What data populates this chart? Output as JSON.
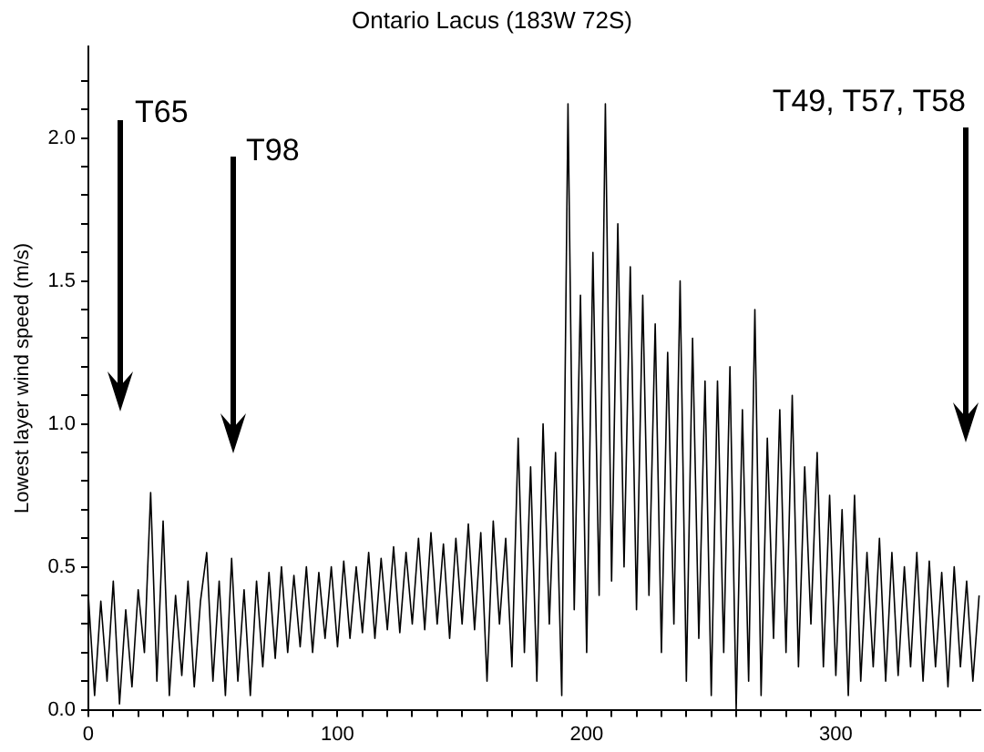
{
  "chart_data": {
    "type": "line",
    "title": "Ontario Lacus (183W 72S)",
    "ylabel": "Lowest layer wind speed (m/s)",
    "xlim": [
      0,
      358
    ],
    "ylim": [
      0,
      2.32
    ],
    "xticks": [
      0,
      {
        "value": 10,
        "label": null
      },
      {
        "value": 20,
        "label": null
      },
      {
        "value": 30,
        "label": null
      },
      {
        "value": 40,
        "label": null
      },
      {
        "value": 50,
        "label": null
      },
      {
        "value": 60,
        "label": null
      },
      {
        "value": 70,
        "label": null
      },
      {
        "value": 80,
        "label": null
      },
      {
        "value": 90,
        "label": null
      },
      100,
      {
        "value": 110,
        "label": null
      },
      {
        "value": 120,
        "label": null
      },
      {
        "value": 130,
        "label": null
      },
      {
        "value": 140,
        "label": null
      },
      {
        "value": 150,
        "label": null
      },
      {
        "value": 160,
        "label": null
      },
      {
        "value": 170,
        "label": null
      },
      {
        "value": 180,
        "label": null
      },
      {
        "value": 190,
        "label": null
      },
      200,
      {
        "value": 210,
        "label": null
      },
      {
        "value": 220,
        "label": null
      },
      {
        "value": 230,
        "label": null
      },
      {
        "value": 240,
        "label": null
      },
      {
        "value": 250,
        "label": null
      },
      {
        "value": 260,
        "label": null
      },
      {
        "value": 270,
        "label": null
      },
      {
        "value": 280,
        "label": null
      },
      {
        "value": 290,
        "label": null
      },
      300,
      {
        "value": 310,
        "label": null
      },
      {
        "value": 320,
        "label": null
      },
      {
        "value": 330,
        "label": null
      },
      {
        "value": 340,
        "label": null
      },
      {
        "value": 350,
        "label": null
      }
    ],
    "yticks": [
      {
        "value": 0,
        "label": "0.0"
      },
      {
        "value": 0.1,
        "label": null
      },
      {
        "value": 0.2,
        "label": null
      },
      {
        "value": 0.3,
        "label": null
      },
      {
        "value": 0.4,
        "label": null
      },
      0.5,
      {
        "value": 0.6,
        "label": null
      },
      {
        "value": 0.7,
        "label": null
      },
      {
        "value": 0.8,
        "label": null
      },
      {
        "value": 0.9,
        "label": null
      },
      {
        "value": 1,
        "label": "1.0"
      },
      {
        "value": 1.1,
        "label": null
      },
      {
        "value": 1.2,
        "label": null
      },
      {
        "value": 1.3,
        "label": null
      },
      {
        "value": 1.4,
        "label": null
      },
      1.5,
      {
        "value": 1.6,
        "label": null
      },
      {
        "value": 1.7,
        "label": null
      },
      {
        "value": 1.8,
        "label": null
      },
      {
        "value": 1.9,
        "label": null
      },
      {
        "value": 2,
        "label": "2.0"
      },
      {
        "value": 2.1,
        "label": null
      },
      {
        "value": 2.2,
        "label": null
      }
    ],
    "grid": false,
    "legend": false,
    "marker": "none",
    "line_style": "solid",
    "series": [
      {
        "color": "#000000",
        "x": [
          0,
          2.5,
          5,
          7.5,
          10,
          12.5,
          15,
          17.5,
          20,
          22.5,
          25,
          27.5,
          30,
          32.5,
          35,
          37.5,
          40,
          42.5,
          45,
          47.5,
          50,
          52.5,
          55,
          57.5,
          60,
          62.5,
          65,
          67.5,
          70,
          72.5,
          75,
          77.5,
          80,
          82.5,
          85,
          87.5,
          90,
          92.5,
          95,
          97.5,
          100,
          102.5,
          105,
          107.5,
          110,
          112.5,
          115,
          117.5,
          120,
          122.5,
          125,
          127.5,
          130,
          132.5,
          135,
          137.5,
          140,
          142.5,
          145,
          147.5,
          150,
          152.5,
          155,
          157.5,
          160,
          162.5,
          165,
          167.5,
          170,
          172.5,
          175,
          177.5,
          180,
          182.5,
          185,
          187.5,
          190,
          192.5,
          195,
          197.5,
          200,
          202.5,
          205,
          207.5,
          210,
          212.5,
          215,
          217.5,
          220,
          222.5,
          225,
          227.5,
          230,
          232.5,
          235,
          237.5,
          240,
          242.5,
          245,
          247.5,
          250,
          252.5,
          255,
          257.5,
          260,
          262.5,
          265,
          267.5,
          270,
          272.5,
          275,
          277.5,
          280,
          282.5,
          285,
          287.5,
          290,
          292.5,
          295,
          297.5,
          300,
          302.5,
          305,
          307.5,
          310,
          312.5,
          315,
          317.5,
          320,
          322.5,
          325,
          327.5,
          330,
          332.5,
          335,
          337.5,
          340,
          342.5,
          345,
          347.5,
          350,
          352.5,
          355,
          357.5
        ],
        "values": [
          0.4,
          0.05,
          0.38,
          0.1,
          0.45,
          0.02,
          0.35,
          0.08,
          0.42,
          0.2,
          0.76,
          0.1,
          0.66,
          0.05,
          0.4,
          0.12,
          0.45,
          0.08,
          0.38,
          0.55,
          0.1,
          0.45,
          0.05,
          0.53,
          0.1,
          0.42,
          0.05,
          0.45,
          0.15,
          0.48,
          0.18,
          0.5,
          0.2,
          0.47,
          0.22,
          0.5,
          0.2,
          0.48,
          0.25,
          0.5,
          0.22,
          0.52,
          0.25,
          0.5,
          0.27,
          0.55,
          0.25,
          0.53,
          0.28,
          0.57,
          0.27,
          0.55,
          0.3,
          0.6,
          0.28,
          0.62,
          0.3,
          0.58,
          0.25,
          0.6,
          0.3,
          0.65,
          0.28,
          0.62,
          0.1,
          0.66,
          0.3,
          0.6,
          0.15,
          0.95,
          0.2,
          0.85,
          0.1,
          1.0,
          0.3,
          0.9,
          0.05,
          2.12,
          0.35,
          1.45,
          0.2,
          1.6,
          0.4,
          2.12,
          0.45,
          1.7,
          0.5,
          1.55,
          0.35,
          1.45,
          0.4,
          1.35,
          0.2,
          1.25,
          0.3,
          1.5,
          0.1,
          1.3,
          0.25,
          1.15,
          0.05,
          1.15,
          0.2,
          1.2,
          0.0,
          1.05,
          0.1,
          1.4,
          0.05,
          0.95,
          0.25,
          1.05,
          0.2,
          1.1,
          0.15,
          0.85,
          0.3,
          0.9,
          0.15,
          0.75,
          0.12,
          0.7,
          0.05,
          0.75,
          0.1,
          0.55,
          0.15,
          0.6,
          0.1,
          0.55,
          0.12,
          0.5,
          0.15,
          0.55,
          0.1,
          0.52,
          0.15,
          0.48,
          0.08,
          0.5,
          0.15,
          0.45,
          0.1,
          0.4
        ]
      }
    ],
    "annotations": [
      "T65",
      "T98",
      "T49, T57, T58"
    ]
  }
}
